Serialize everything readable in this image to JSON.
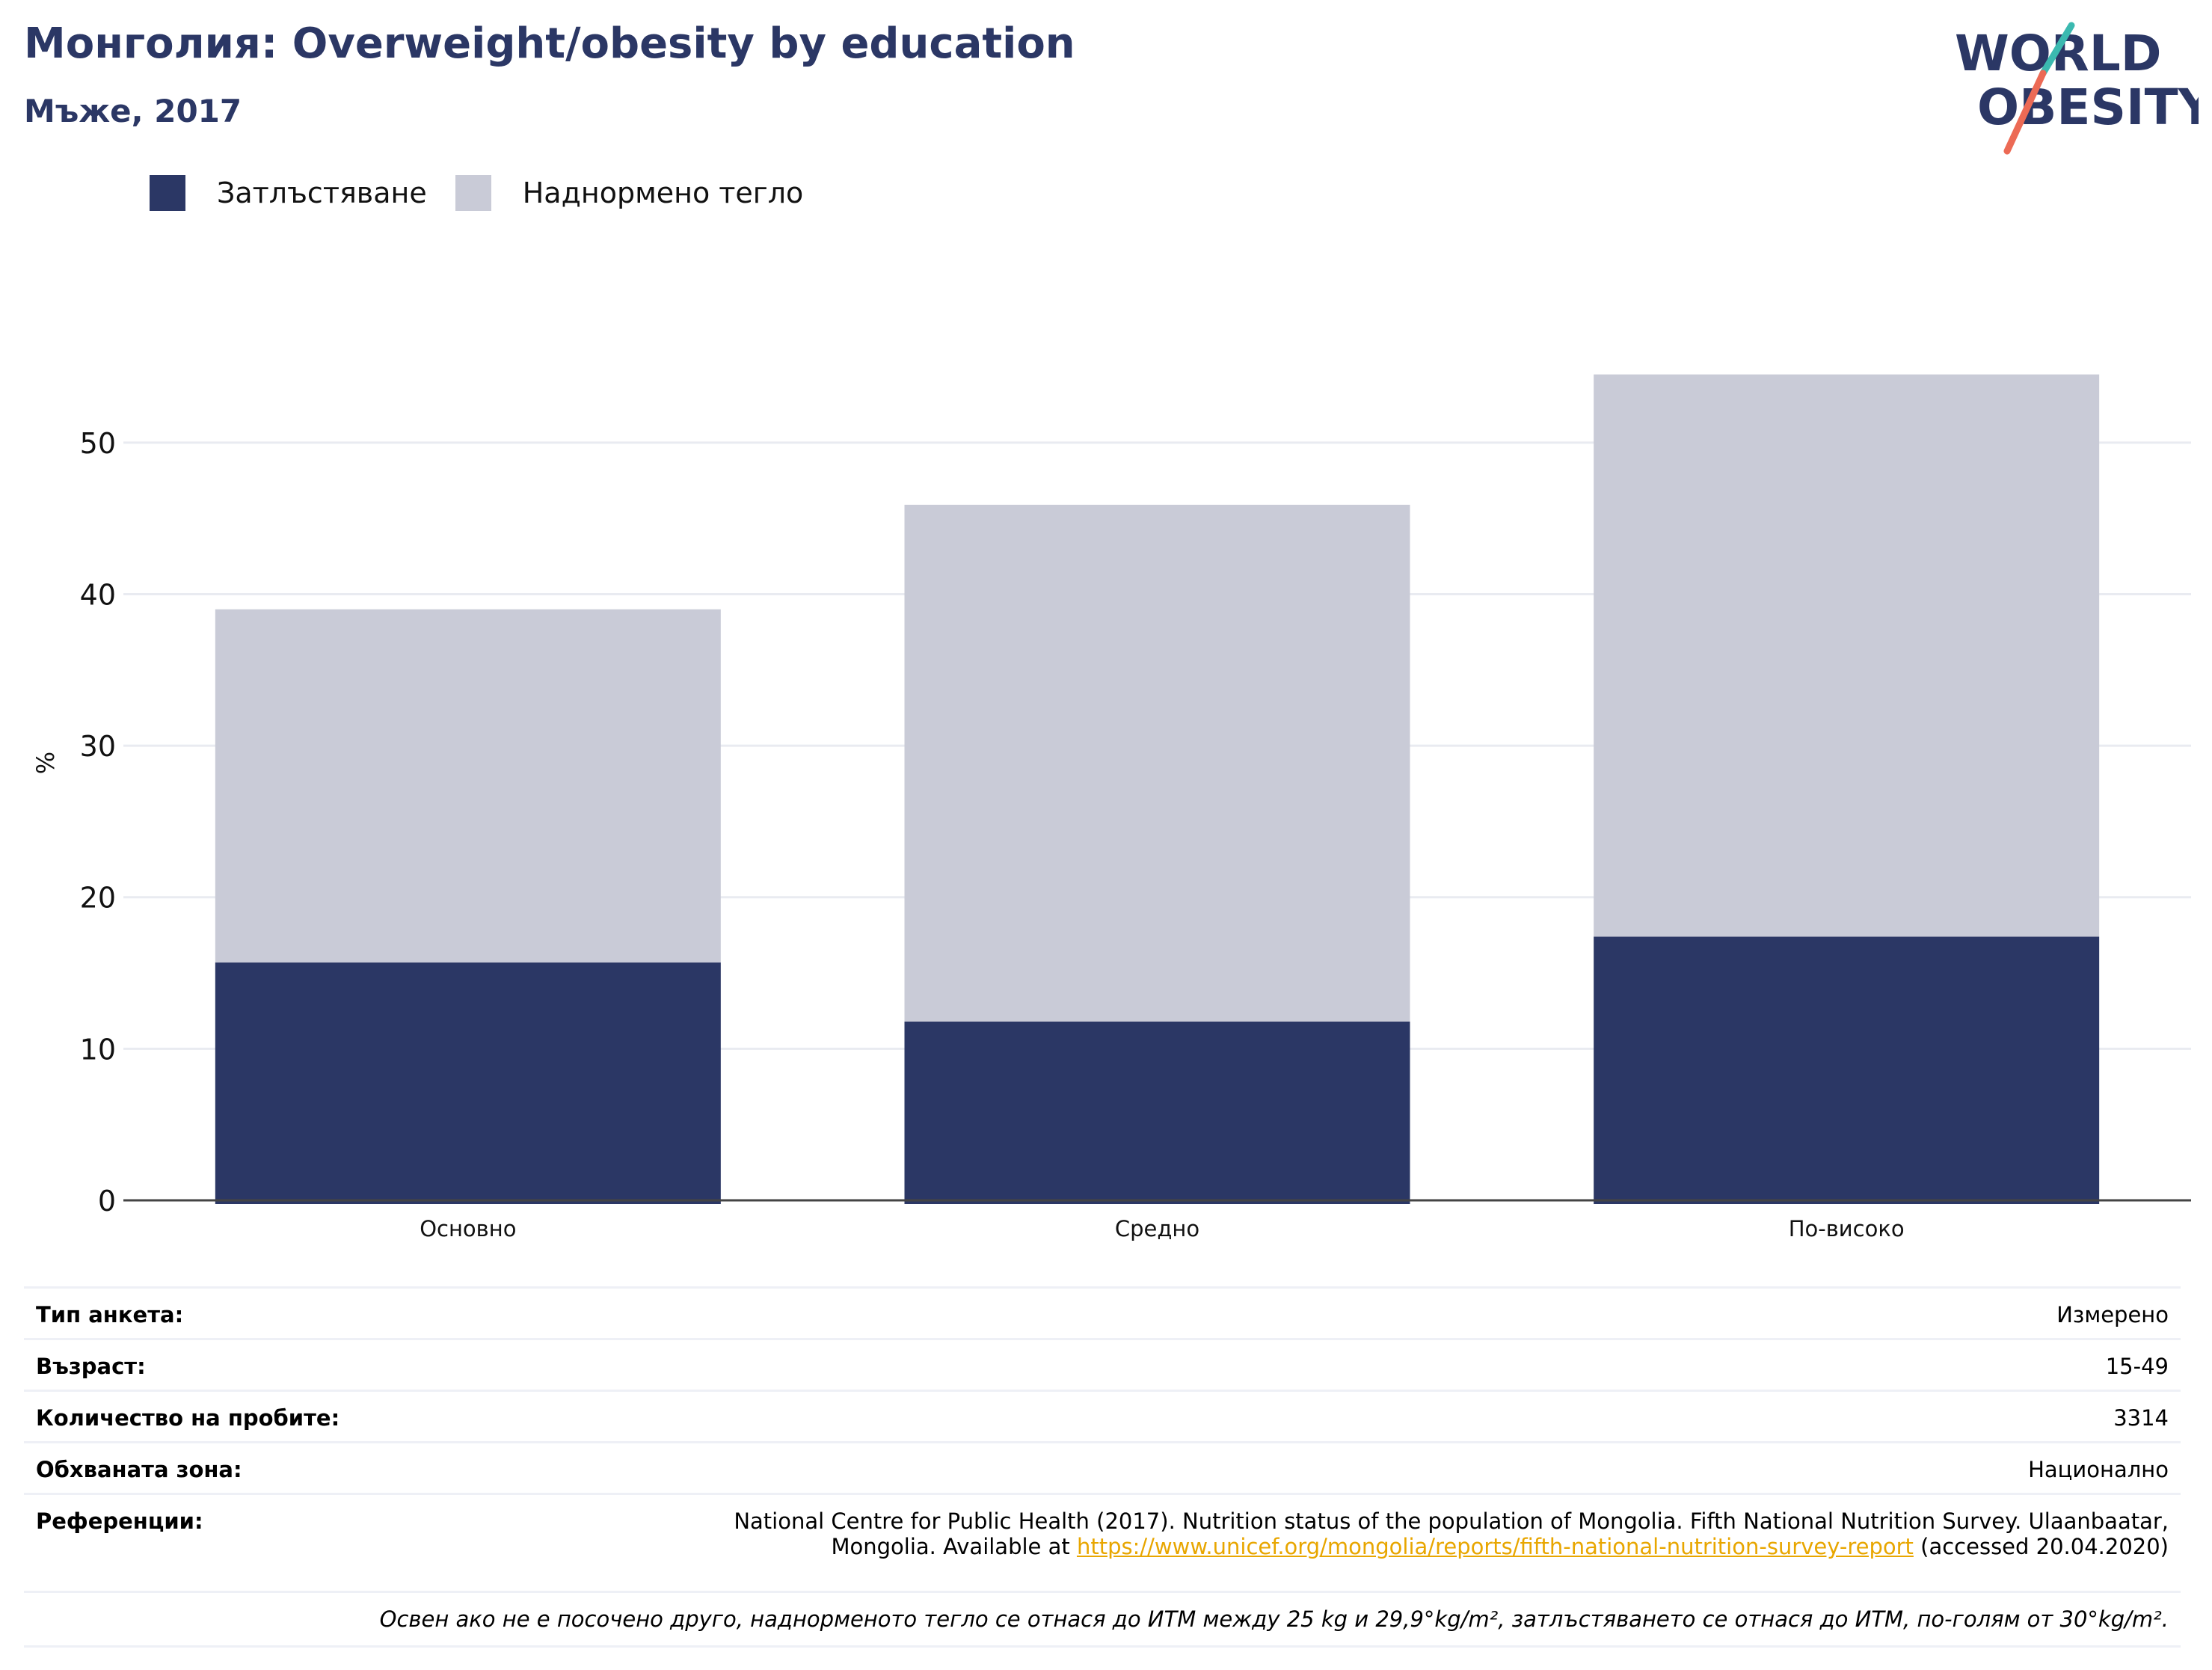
{
  "header": {
    "title": "Монголия: Overweight/obesity by education",
    "subtitle": "Мъже, 2017",
    "logo_line1": "WORLD",
    "logo_line2": "OBESITY"
  },
  "colors": {
    "obesity": "#2b3765",
    "overweight": "#c9cbd7",
    "title": "#2b3765",
    "logo_teal": "#3bb9b0",
    "logo_coral": "#ec6a55",
    "link": "#e8a600"
  },
  "legend": [
    {
      "label": "Затлъстяване",
      "color": "#2b3765"
    },
    {
      "label": "Наднормено тегло",
      "color": "#c9cbd7"
    }
  ],
  "chart_data": {
    "type": "bar",
    "stacked": true,
    "categories": [
      "Основно",
      "Средно",
      "По-високо"
    ],
    "series": [
      {
        "name": "Затлъстяване",
        "values": [
          15.7,
          11.8,
          17.4
        ]
      },
      {
        "name": "Наднормено тегло",
        "values": [
          23.3,
          34.1,
          37.1
        ]
      }
    ],
    "totals": [
      39.0,
      45.9,
      54.5
    ],
    "ylabel": "%",
    "yticks": [
      0,
      10,
      20,
      30,
      40,
      50
    ],
    "ylim": [
      0,
      57
    ],
    "grid": true,
    "legend_position": "top-left"
  },
  "info": {
    "survey_type_label": "Тип анкета:",
    "survey_type_value": "Измерено",
    "age_label": "Възраст:",
    "age_value": "15-49",
    "sample_label": "Количество на пробите:",
    "sample_value": "3314",
    "area_label": "Обхваната зона:",
    "area_value": "Национално",
    "references_label": "Референции:",
    "references_line1": "National Centre for Public Health (2017). Nutrition status of the population of Mongolia. Fifth National Nutrition Survey. Ulaanbaatar,",
    "references_line2_prefix": "Mongolia. Available at ",
    "references_link": "https://www.unicef.org/mongolia/reports/fifth-national-nutrition-survey-report",
    "references_line2_suffix": " (accessed 20.04.2020)",
    "note": "Освен ако не е посочено друго, наднорменото тегло се отнася до ИТМ между 25 kg и 29,9°kg/m², затлъстяването се отнася до ИТМ, по-голям от 30°kg/m²."
  }
}
